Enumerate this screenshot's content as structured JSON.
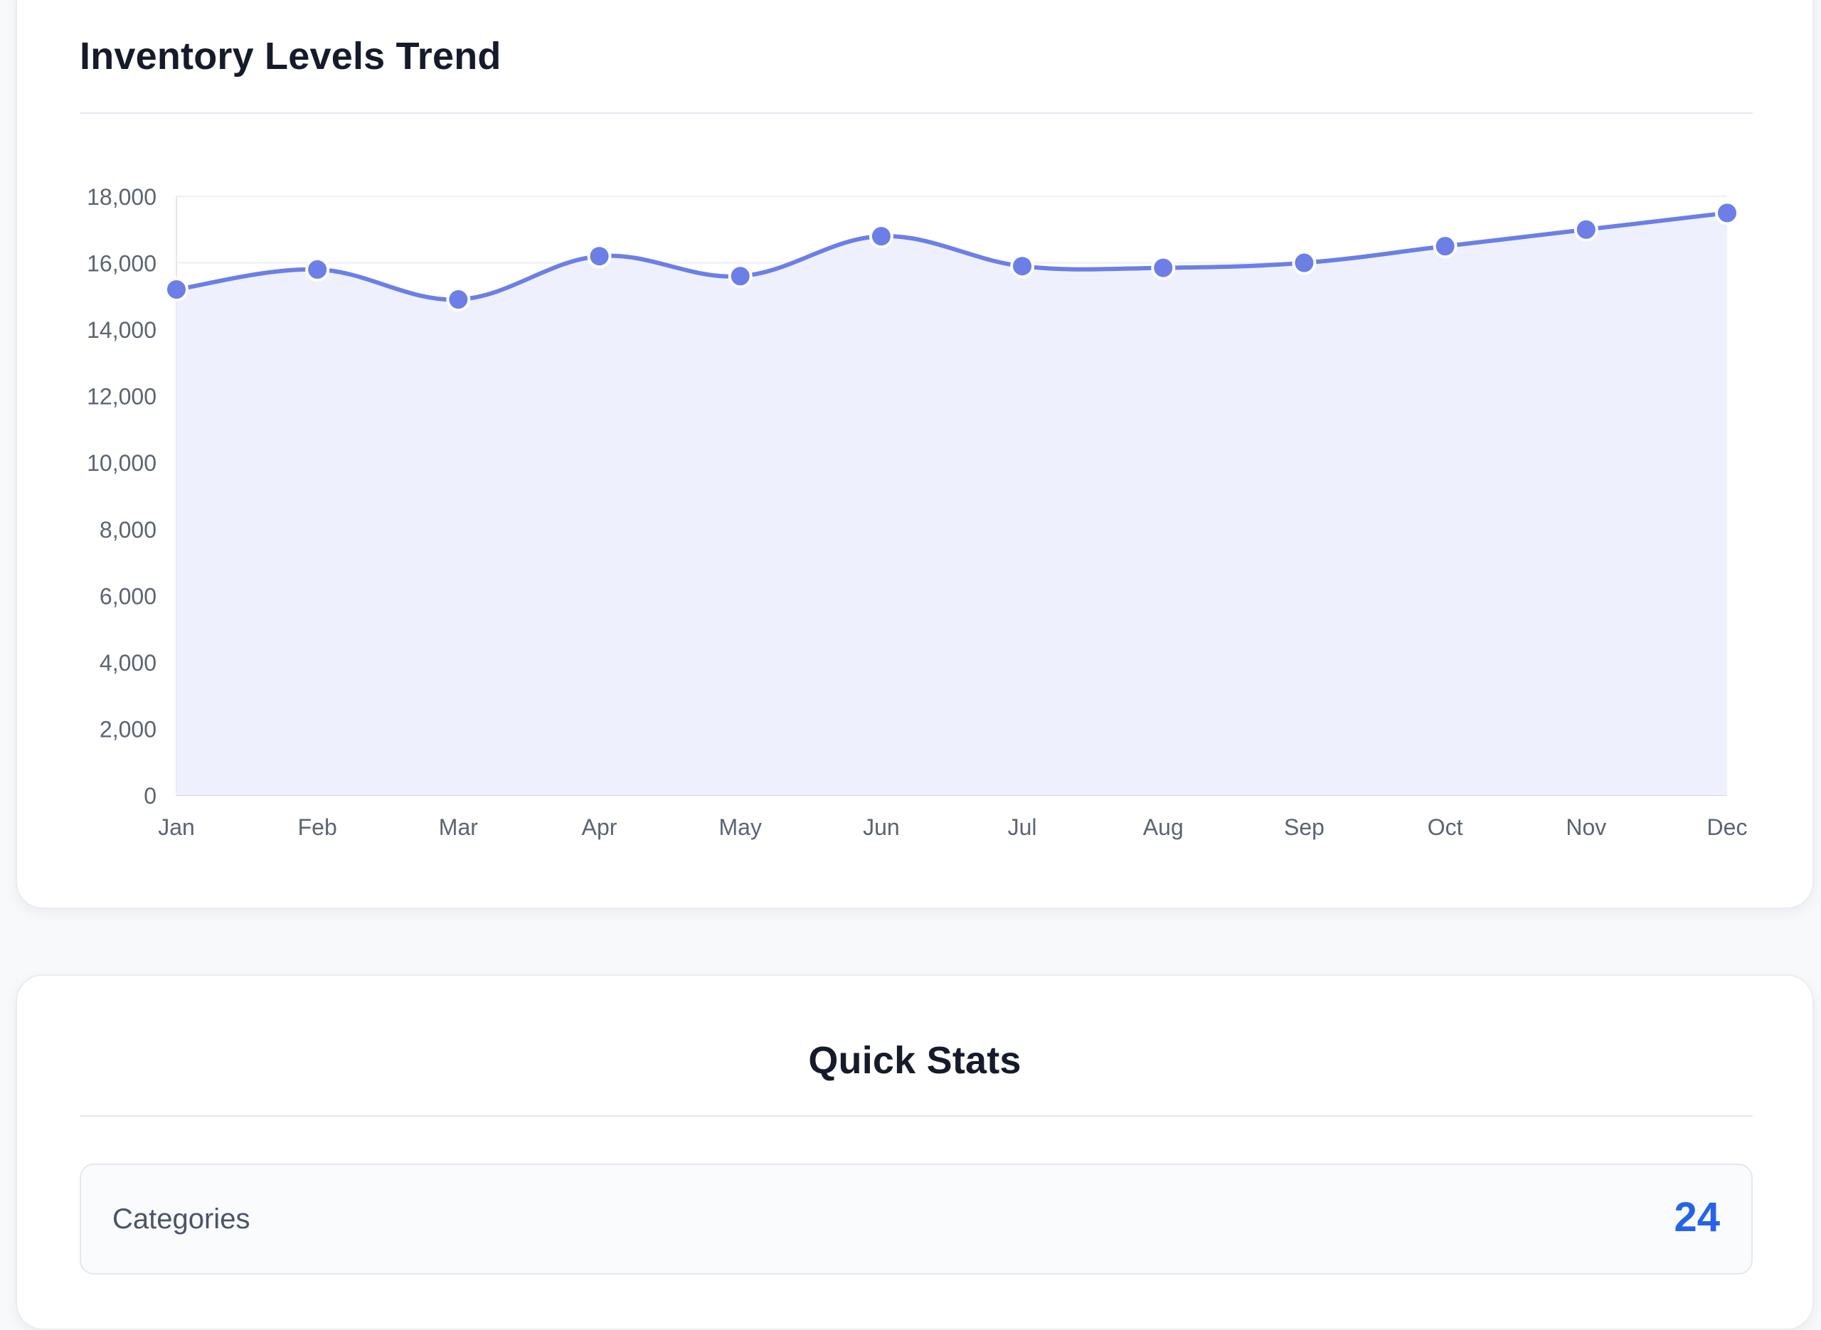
{
  "trend_card": {
    "title": "Inventory Levels Trend"
  },
  "stats_card": {
    "title": "Quick Stats",
    "rows": [
      {
        "label": "Categories",
        "value": "24"
      }
    ]
  },
  "colors": {
    "line": "#6b7fe6",
    "area": "#eef1fd",
    "accent_value": "#2563eb"
  },
  "chart_data": {
    "type": "area",
    "title": "Inventory Levels Trend",
    "categories": [
      "Jan",
      "Feb",
      "Mar",
      "Apr",
      "May",
      "Jun",
      "Jul",
      "Aug",
      "Sep",
      "Oct",
      "Nov",
      "Dec"
    ],
    "series": [
      {
        "values": [
          15200,
          15800,
          14900,
          16200,
          15600,
          16800,
          15900,
          15850,
          16000,
          16500,
          17000,
          17500
        ]
      }
    ],
    "ylim": [
      0,
      18000
    ],
    "yticks": [
      0,
      2000,
      4000,
      6000,
      8000,
      10000,
      12000,
      14000,
      16000,
      18000
    ],
    "ytick_labels": [
      "0",
      "2,000",
      "4,000",
      "6,000",
      "8,000",
      "10,000",
      "12,000",
      "14,000",
      "16,000",
      "18,000"
    ],
    "xlabel": "",
    "ylabel": "",
    "grid": true,
    "legend": "none",
    "smooth": true,
    "markers": true
  }
}
